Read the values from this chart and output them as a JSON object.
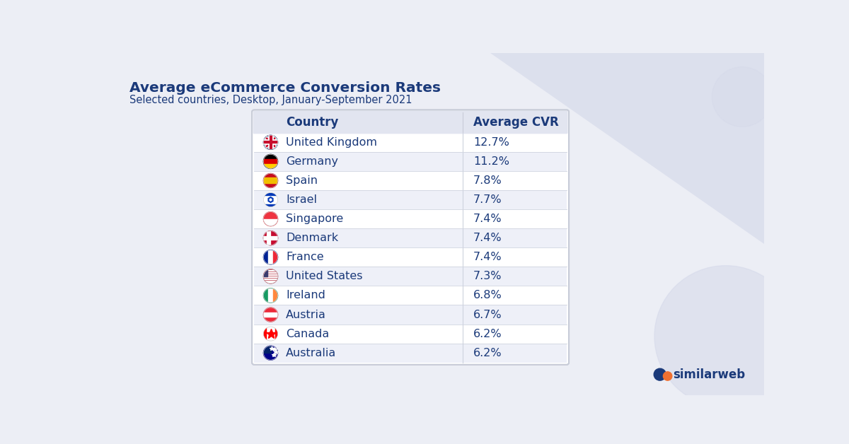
{
  "title": "Average eCommerce Conversion Rates",
  "subtitle": "Selected countries, Desktop, January-September 2021",
  "title_color": "#1b3a7a",
  "subtitle_color": "#1b3a7a",
  "col1_header": "Country",
  "col2_header": "Average CVR",
  "countries": [
    "United Kingdom",
    "Germany",
    "Spain",
    "Israel",
    "Singapore",
    "Denmark",
    "France",
    "United States",
    "Ireland",
    "Austria",
    "Canada",
    "Australia"
  ],
  "values": [
    "12.7%",
    "11.2%",
    "7.8%",
    "7.7%",
    "7.4%",
    "7.4%",
    "7.4%",
    "7.3%",
    "6.8%",
    "6.7%",
    "6.2%",
    "6.2%"
  ],
  "bg_color": "#eceef5",
  "table_bg": "#ffffff",
  "row_alt_color": "#eef0f8",
  "header_bg": "#e2e5f0",
  "text_color": "#1b3a7a",
  "value_color": "#1b3a7a",
  "similarweb_logo_color": "#1b3a7a",
  "similarweb_orange": "#f07030",
  "deco_stripe_color": "#d5d9ea",
  "deco_circle_color": "#d5d9ea",
  "border_color": "#c8ccd8"
}
